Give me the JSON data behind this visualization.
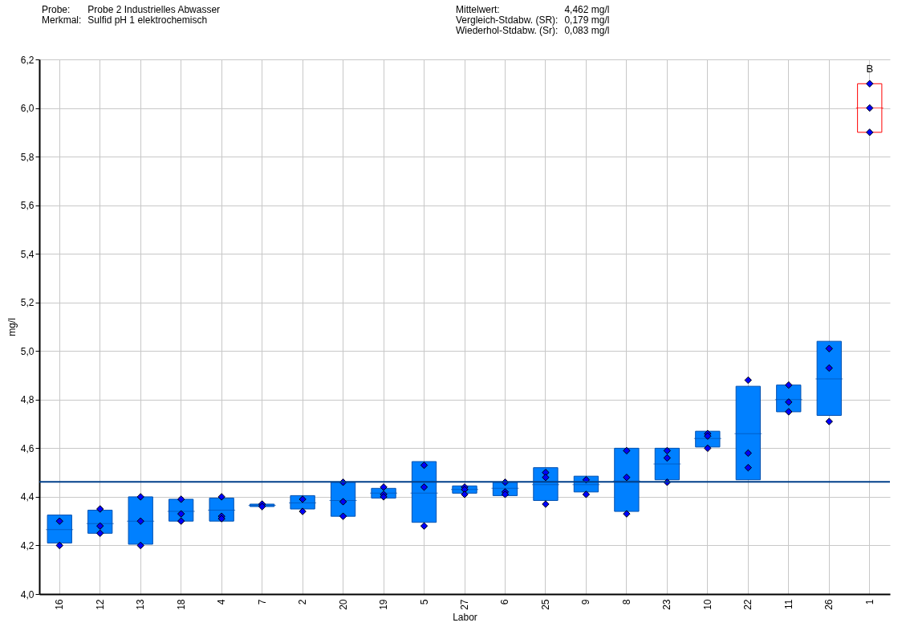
{
  "chart_data": {
    "type": "box",
    "xlabel": "Labor",
    "ylabel": "mg/l",
    "categories": [
      "16",
      "12",
      "13",
      "18",
      "4",
      "7",
      "2",
      "20",
      "19",
      "5",
      "27",
      "6",
      "25",
      "9",
      "8",
      "23",
      "10",
      "22",
      "11",
      "26",
      "1"
    ],
    "ylim": [
      4.0,
      6.2
    ],
    "yticks": [
      {
        "value": 4.0,
        "label": "4,0"
      },
      {
        "value": 4.2,
        "label": "4,2"
      },
      {
        "value": 4.4,
        "label": "4,4"
      },
      {
        "value": 4.6,
        "label": "4,6"
      },
      {
        "value": 4.8,
        "label": "4,8"
      },
      {
        "value": 5.0,
        "label": "5,0"
      },
      {
        "value": 5.2,
        "label": "5,2"
      },
      {
        "value": 5.4,
        "label": "5,4"
      },
      {
        "value": 5.6,
        "label": "5,6"
      },
      {
        "value": 5.8,
        "label": "5,8"
      },
      {
        "value": 6.0,
        "label": "6,0"
      },
      {
        "value": 6.2,
        "label": "6,2"
      }
    ],
    "grid": true,
    "series": [
      {
        "color": "#0080ff",
        "boxes": [
          {
            "low": 4.21,
            "q1": 4.21,
            "median": 4.265,
            "q3": 4.325,
            "high": 4.325
          },
          {
            "low": 4.25,
            "q1": 4.25,
            "median": 4.29,
            "q3": 4.345,
            "high": 4.345
          },
          {
            "low": 4.205,
            "q1": 4.205,
            "median": 4.3,
            "q3": 4.4,
            "high": 4.4
          },
          {
            "low": 4.3,
            "q1": 4.3,
            "median": 4.34,
            "q3": 4.39,
            "high": 4.39
          },
          {
            "low": 4.3,
            "q1": 4.3,
            "median": 4.345,
            "q3": 4.395,
            "high": 4.395
          },
          {
            "low": 4.36,
            "q1": 4.36,
            "median": 4.365,
            "q3": 4.37,
            "high": 4.37
          },
          {
            "low": 4.35,
            "q1": 4.35,
            "median": 4.375,
            "q3": 4.405,
            "high": 4.405
          },
          {
            "low": 4.32,
            "q1": 4.32,
            "median": 4.385,
            "q3": 4.46,
            "high": 4.46
          },
          {
            "low": 4.395,
            "q1": 4.395,
            "median": 4.415,
            "q3": 4.435,
            "high": 4.435
          },
          {
            "low": 4.295,
            "q1": 4.295,
            "median": 4.415,
            "q3": 4.545,
            "high": 4.545
          },
          {
            "low": 4.415,
            "q1": 4.415,
            "median": 4.43,
            "q3": 4.445,
            "high": 4.445
          },
          {
            "low": 4.405,
            "q1": 4.405,
            "median": 4.435,
            "q3": 4.46,
            "high": 4.46
          },
          {
            "low": 4.385,
            "q1": 4.385,
            "median": 4.45,
            "q3": 4.52,
            "high": 4.52
          },
          {
            "low": 4.42,
            "q1": 4.42,
            "median": 4.45,
            "q3": 4.485,
            "high": 4.485
          },
          {
            "low": 4.34,
            "q1": 4.34,
            "median": 4.465,
            "q3": 4.6,
            "high": 4.6
          },
          {
            "low": 4.47,
            "q1": 4.47,
            "median": 4.535,
            "q3": 4.6,
            "high": 4.6
          },
          {
            "low": 4.605,
            "q1": 4.605,
            "median": 4.64,
            "q3": 4.67,
            "high": 4.67
          },
          {
            "low": 4.47,
            "q1": 4.47,
            "median": 4.66,
            "q3": 4.855,
            "high": 4.855
          },
          {
            "low": 4.75,
            "q1": 4.75,
            "median": 4.8,
            "q3": 4.86,
            "high": 4.86
          },
          {
            "low": 4.735,
            "q1": 4.735,
            "median": 4.885,
            "q3": 5.04,
            "high": 5.04
          },
          null
        ]
      },
      {
        "color": "#ff0000",
        "boxes": [
          null,
          null,
          null,
          null,
          null,
          null,
          null,
          null,
          null,
          null,
          null,
          null,
          null,
          null,
          null,
          null,
          null,
          null,
          null,
          null,
          {
            "low": 5.9,
            "q1": 5.9,
            "median": 6.0,
            "q3": 6.1,
            "high": 6.1
          }
        ]
      },
      {
        "type": "scatter",
        "color": "#0000ff",
        "marker": "diamond",
        "x": [
          "16",
          "16",
          "12",
          "12",
          "12",
          "13",
          "13",
          "13",
          "18",
          "18",
          "18",
          "4",
          "4",
          "4",
          "7",
          "7",
          "2",
          "2",
          "20",
          "20",
          "20",
          "19",
          "19",
          "19",
          "5",
          "5",
          "5",
          "27",
          "27",
          "27",
          "6",
          "6",
          "6",
          "25",
          "25",
          "25",
          "9",
          "9",
          "8",
          "8",
          "8",
          "23",
          "23",
          "23",
          "10",
          "10",
          "10",
          "22",
          "22",
          "22",
          "11",
          "11",
          "11",
          "26",
          "26",
          "26",
          "1",
          "1",
          "1"
        ],
        "values": [
          4.3,
          4.2,
          4.35,
          4.28,
          4.25,
          4.4,
          4.3,
          4.2,
          4.39,
          4.33,
          4.3,
          4.4,
          4.32,
          4.31,
          4.37,
          4.36,
          4.39,
          4.34,
          4.46,
          4.38,
          4.32,
          4.44,
          4.41,
          4.4,
          4.53,
          4.44,
          4.28,
          4.44,
          4.43,
          4.41,
          4.46,
          4.42,
          4.41,
          4.5,
          4.48,
          4.37,
          4.47,
          4.41,
          4.59,
          4.48,
          4.33,
          4.59,
          4.56,
          4.46,
          4.66,
          4.65,
          4.6,
          4.88,
          4.58,
          4.52,
          4.86,
          4.79,
          4.75,
          5.01,
          4.93,
          4.71,
          6.1,
          6.0,
          5.9
        ]
      }
    ],
    "ref_lines": [
      {
        "axis": "y",
        "value": 4.462,
        "color": "#003f8a"
      }
    ],
    "annotations": [
      "Probe:",
      "Probe 2 Industrielles Abwasser",
      "Merkmal:",
      "Sulfid pH 1 elektrochemisch",
      "Mittelwert:",
      "4,462 mg/l",
      "Vergleich-Stdabw. (SR):",
      "0,179 mg/l",
      "Wiederhol-Stdabw. (Sr):",
      "0,083 mg/l",
      {
        "text": "B",
        "x": "1",
        "y": 6.1
      }
    ]
  }
}
